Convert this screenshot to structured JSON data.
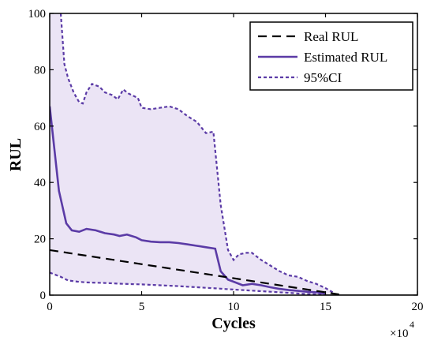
{
  "chart_data": {
    "type": "line",
    "xlabel": "Cycles",
    "ylabel": "RUL",
    "xlim": [
      0,
      20
    ],
    "ylim": [
      0,
      100
    ],
    "x_ticks": [
      0,
      5,
      10,
      15,
      20
    ],
    "y_ticks": [
      0,
      20,
      40,
      60,
      80,
      100
    ],
    "x_multiplier": "×10",
    "x_multiplier_exp": "4",
    "grid": false,
    "legend_position": "top-right",
    "colors": {
      "real": "#000000",
      "estimated": "#5b3ba6",
      "ci": "#5b3ba6",
      "ci_fill": "#ebe4f5"
    },
    "series": [
      {
        "name": "Real RUL",
        "style": "dashed",
        "x": [
          0,
          16
        ],
        "y": [
          16,
          0
        ]
      },
      {
        "name": "Estimated RUL",
        "style": "solid",
        "x": [
          0,
          0.5,
          0.9,
          1.2,
          1.6,
          2.0,
          2.5,
          3.0,
          3.5,
          3.8,
          4.2,
          4.7,
          5.0,
          5.5,
          6.0,
          6.5,
          7.0,
          7.5,
          8.0,
          8.5,
          9.0,
          9.3,
          9.7,
          10.1,
          10.5,
          11.0,
          11.5,
          12.0,
          12.5,
          13.0,
          13.5,
          14.0,
          14.5,
          15.0
        ],
        "y": [
          67,
          37,
          25.5,
          23,
          22.5,
          23.5,
          23,
          22,
          21.5,
          21,
          21.5,
          20.5,
          19.5,
          19,
          18.8,
          18.8,
          18.5,
          18,
          17.5,
          17,
          16.5,
          8.5,
          5.5,
          4.5,
          3.5,
          4,
          3.5,
          2.8,
          2.2,
          1.8,
          1.5,
          1.2,
          1.0,
          0.5
        ]
      },
      {
        "name": "95%CI",
        "style": "dotted",
        "upper": {
          "x": [
            0.6,
            0.8,
            1.0,
            1.3,
            1.6,
            1.8,
            2.0,
            2.3,
            2.7,
            3.0,
            3.4,
            3.7,
            4.0,
            4.3,
            4.8,
            5.0,
            5.5,
            6.0,
            6.5,
            7.0,
            7.5,
            8.0,
            8.5,
            8.9,
            9.3,
            9.7,
            10.0,
            10.3,
            10.7,
            11.0,
            11.5,
            12.0,
            12.5,
            13.0,
            13.5,
            14.0,
            14.5,
            15.0,
            15.4
          ],
          "y": [
            100,
            82,
            77,
            72,
            68.5,
            68,
            72,
            75,
            74,
            72,
            71,
            69.5,
            73,
            71.5,
            70,
            66.5,
            66,
            66.5,
            67,
            66,
            63.5,
            61.5,
            57.5,
            58,
            32,
            16,
            12.5,
            14.5,
            15,
            15,
            12.5,
            10.5,
            8.5,
            7,
            6.5,
            5,
            4,
            2.5,
            1
          ]
        },
        "lower": {
          "x": [
            0,
            0.6,
            1.0,
            1.5,
            2.0,
            3.0,
            4.0,
            5.0,
            6.0,
            7.0,
            8.0,
            9.0,
            10.0,
            11.0,
            12.0,
            13.0,
            14.0,
            15.0
          ],
          "y": [
            8,
            6.5,
            5.2,
            4.8,
            4.5,
            4.3,
            4,
            3.8,
            3.5,
            3.2,
            2.8,
            2.4,
            2.0,
            1.6,
            1.2,
            0.8,
            0.4,
            0.1
          ]
        }
      }
    ]
  }
}
